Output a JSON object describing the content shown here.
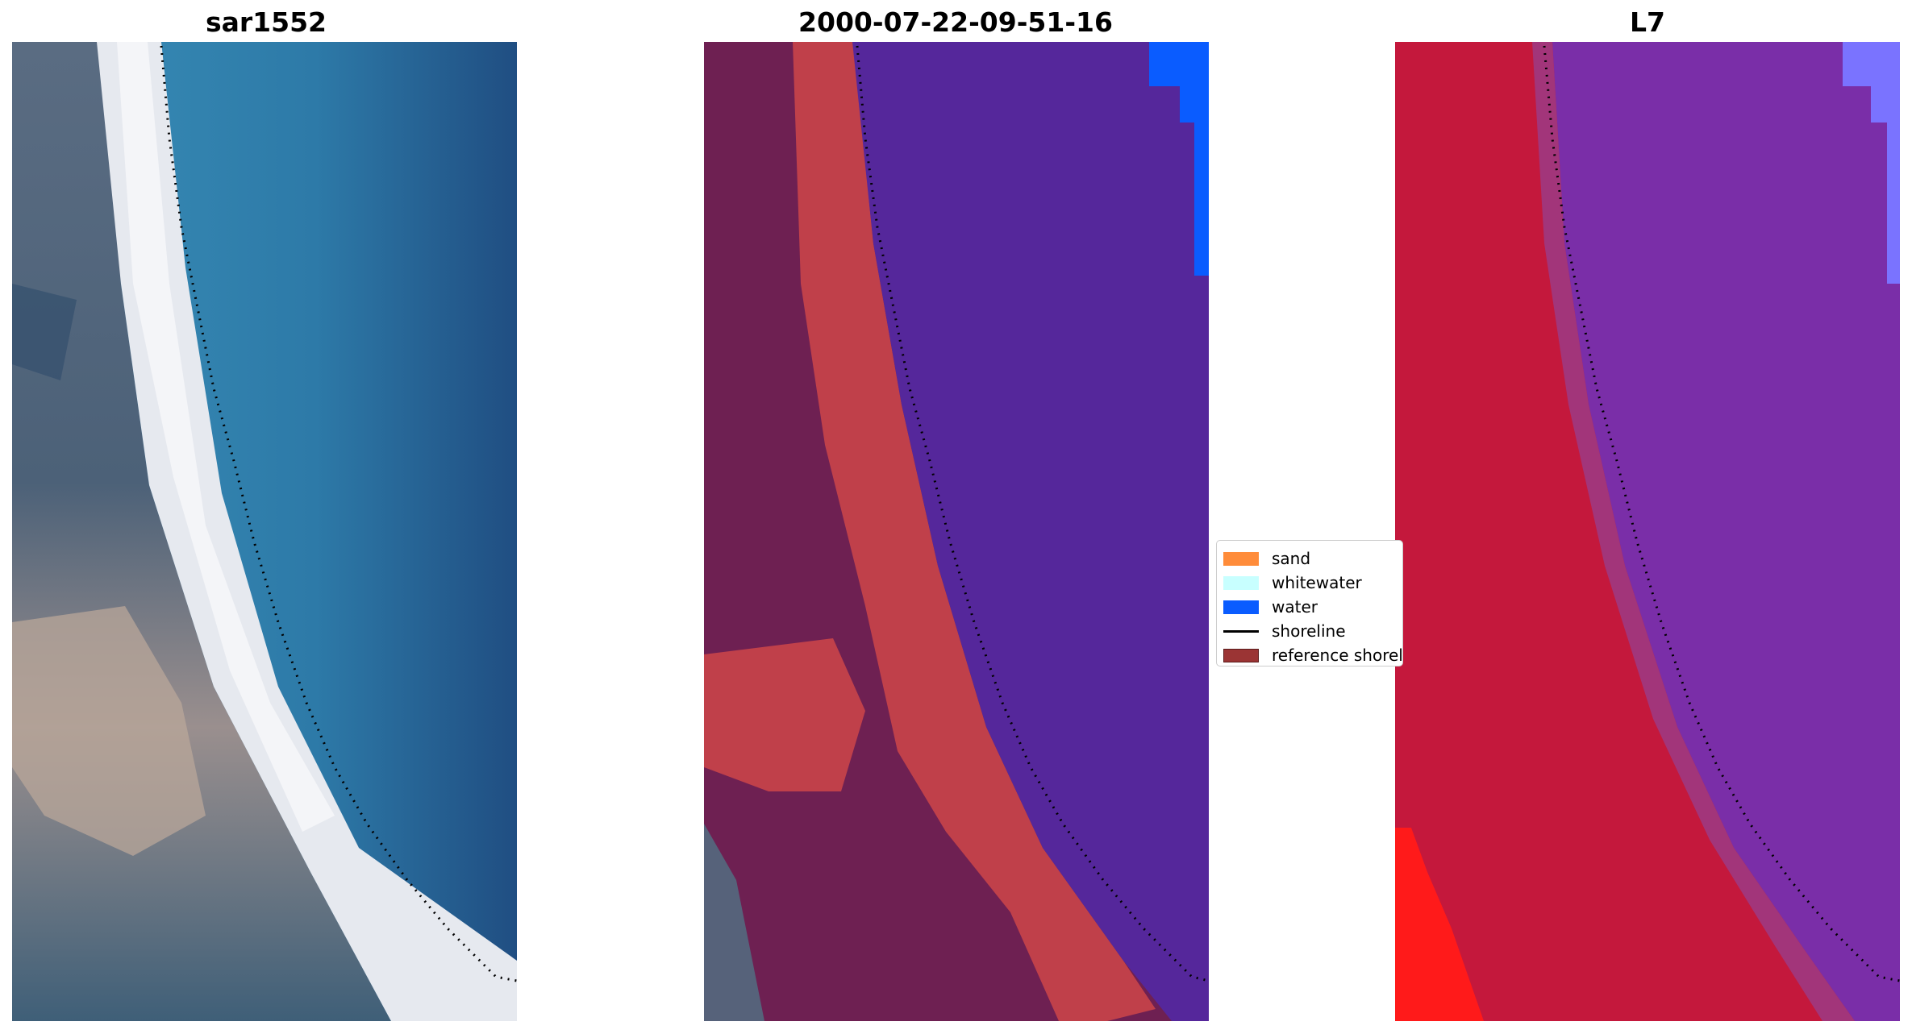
{
  "panels": [
    {
      "title": "sar1552"
    },
    {
      "title": "2000-07-22-09-51-16"
    },
    {
      "title": "L7"
    }
  ],
  "legend": {
    "items": [
      {
        "label": "sand",
        "kind": "patch",
        "color": "#ff8c3a"
      },
      {
        "label": "whitewater",
        "kind": "patch",
        "color": "#c8ffff"
      },
      {
        "label": "water",
        "kind": "patch",
        "color": "#0a5cff"
      },
      {
        "label": "shoreline",
        "kind": "line",
        "color": "#000000"
      },
      {
        "label": "reference shoreline",
        "kind": "patch",
        "color": "#9b3434"
      }
    ]
  },
  "colors": {
    "rgb_sea": "#2f7ca6",
    "rgb_deep_sea": "#1f4f80",
    "rgb_beach": "#eef0f4",
    "rgb_land": "#556a80",
    "classified_water": "#55279b",
    "classified_bright_water": "#0a5cff",
    "classified_sand": "#c0404a",
    "classified_land": "#6e2052",
    "false_color_land": "#c4183c",
    "false_color_water": "#7a2ea8",
    "false_color_bright": "#ff1a1a"
  }
}
